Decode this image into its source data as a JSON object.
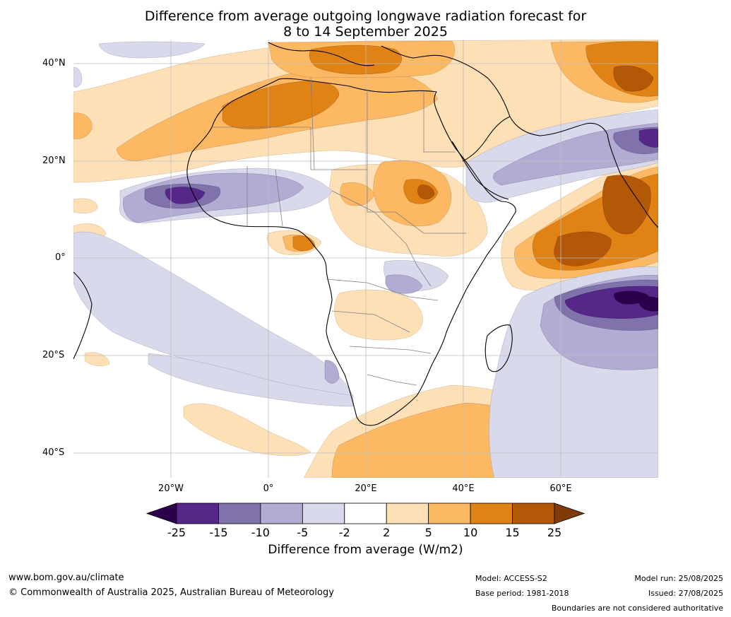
{
  "title_line1": "Difference from average outgoing longwave radiation forecast for",
  "title_line2": "8 to 14 September 2025",
  "latitude_labels": [
    "40°N",
    "20°N",
    "0°",
    "20°S",
    "40°S"
  ],
  "longitude_labels": [
    "20°W",
    "0°",
    "20°E",
    "40°E",
    "60°E"
  ],
  "colorbar": {
    "ticks": [
      "-25",
      "-15",
      "-10",
      "-5",
      "-2",
      "2",
      "5",
      "10",
      "15",
      "25"
    ],
    "colors": [
      "#2d004b",
      "#542788",
      "#8073ac",
      "#b2abd2",
      "#d8daeb",
      "#ffffff",
      "#fee0b6",
      "#fdb863",
      "#e08214",
      "#b35806",
      "#7f3b08"
    ],
    "label": "Difference from average (W/m2)"
  },
  "footer": {
    "website": "www.bom.gov.au/climate",
    "copyright": "© Commonwealth of Australia 2025, Australian Bureau of Meteorology",
    "model": "Model: ACCESS-S2",
    "base_period": "Base period: 1981-2018",
    "model_run": "Model run: 25/08/2025",
    "issued": "Issued: 27/08/2025",
    "disclaimer": "Boundaries are not considered authoritative"
  }
}
